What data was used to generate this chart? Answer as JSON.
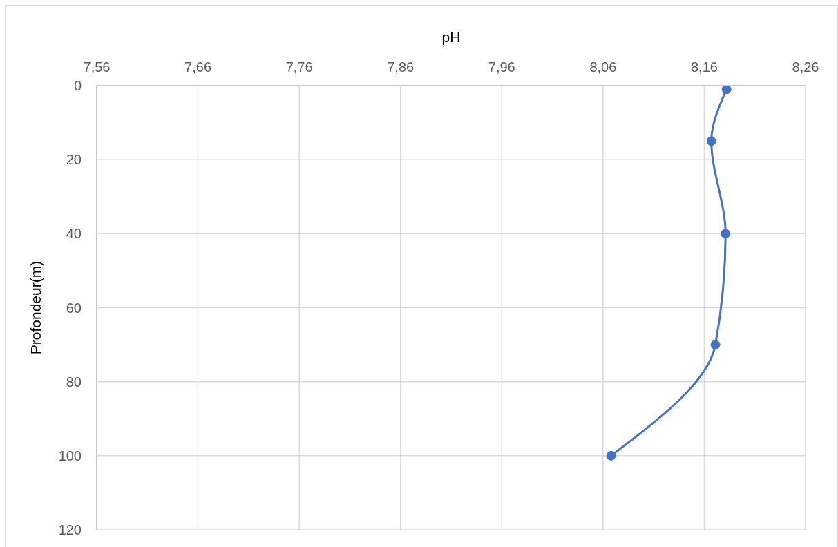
{
  "chart_data": {
    "type": "line",
    "xlabel": "pH",
    "ylabel": "Profondeur(m)",
    "x": [
      8.182,
      8.167,
      8.181,
      8.171,
      8.068
    ],
    "values": [
      1,
      15,
      40,
      70,
      100
    ],
    "color": "#4472c4",
    "xlim": [
      7.56,
      8.26
    ],
    "xticks": [
      {
        "value": 7.56,
        "label": "7,56"
      },
      {
        "value": 7.66,
        "label": "7,66"
      },
      {
        "value": 7.76,
        "label": "7,76"
      },
      {
        "value": 7.86,
        "label": "7,86"
      },
      {
        "value": 7.96,
        "label": "7,96"
      },
      {
        "value": 8.06,
        "label": "8,06"
      },
      {
        "value": 8.16,
        "label": "8,16"
      },
      {
        "value": 8.26,
        "label": "8,26"
      }
    ],
    "ylim": [
      120,
      0
    ],
    "yticks": [
      0,
      20,
      40,
      60,
      80,
      100,
      120
    ],
    "grid": true,
    "marker": "circle",
    "line_style": "solid"
  }
}
